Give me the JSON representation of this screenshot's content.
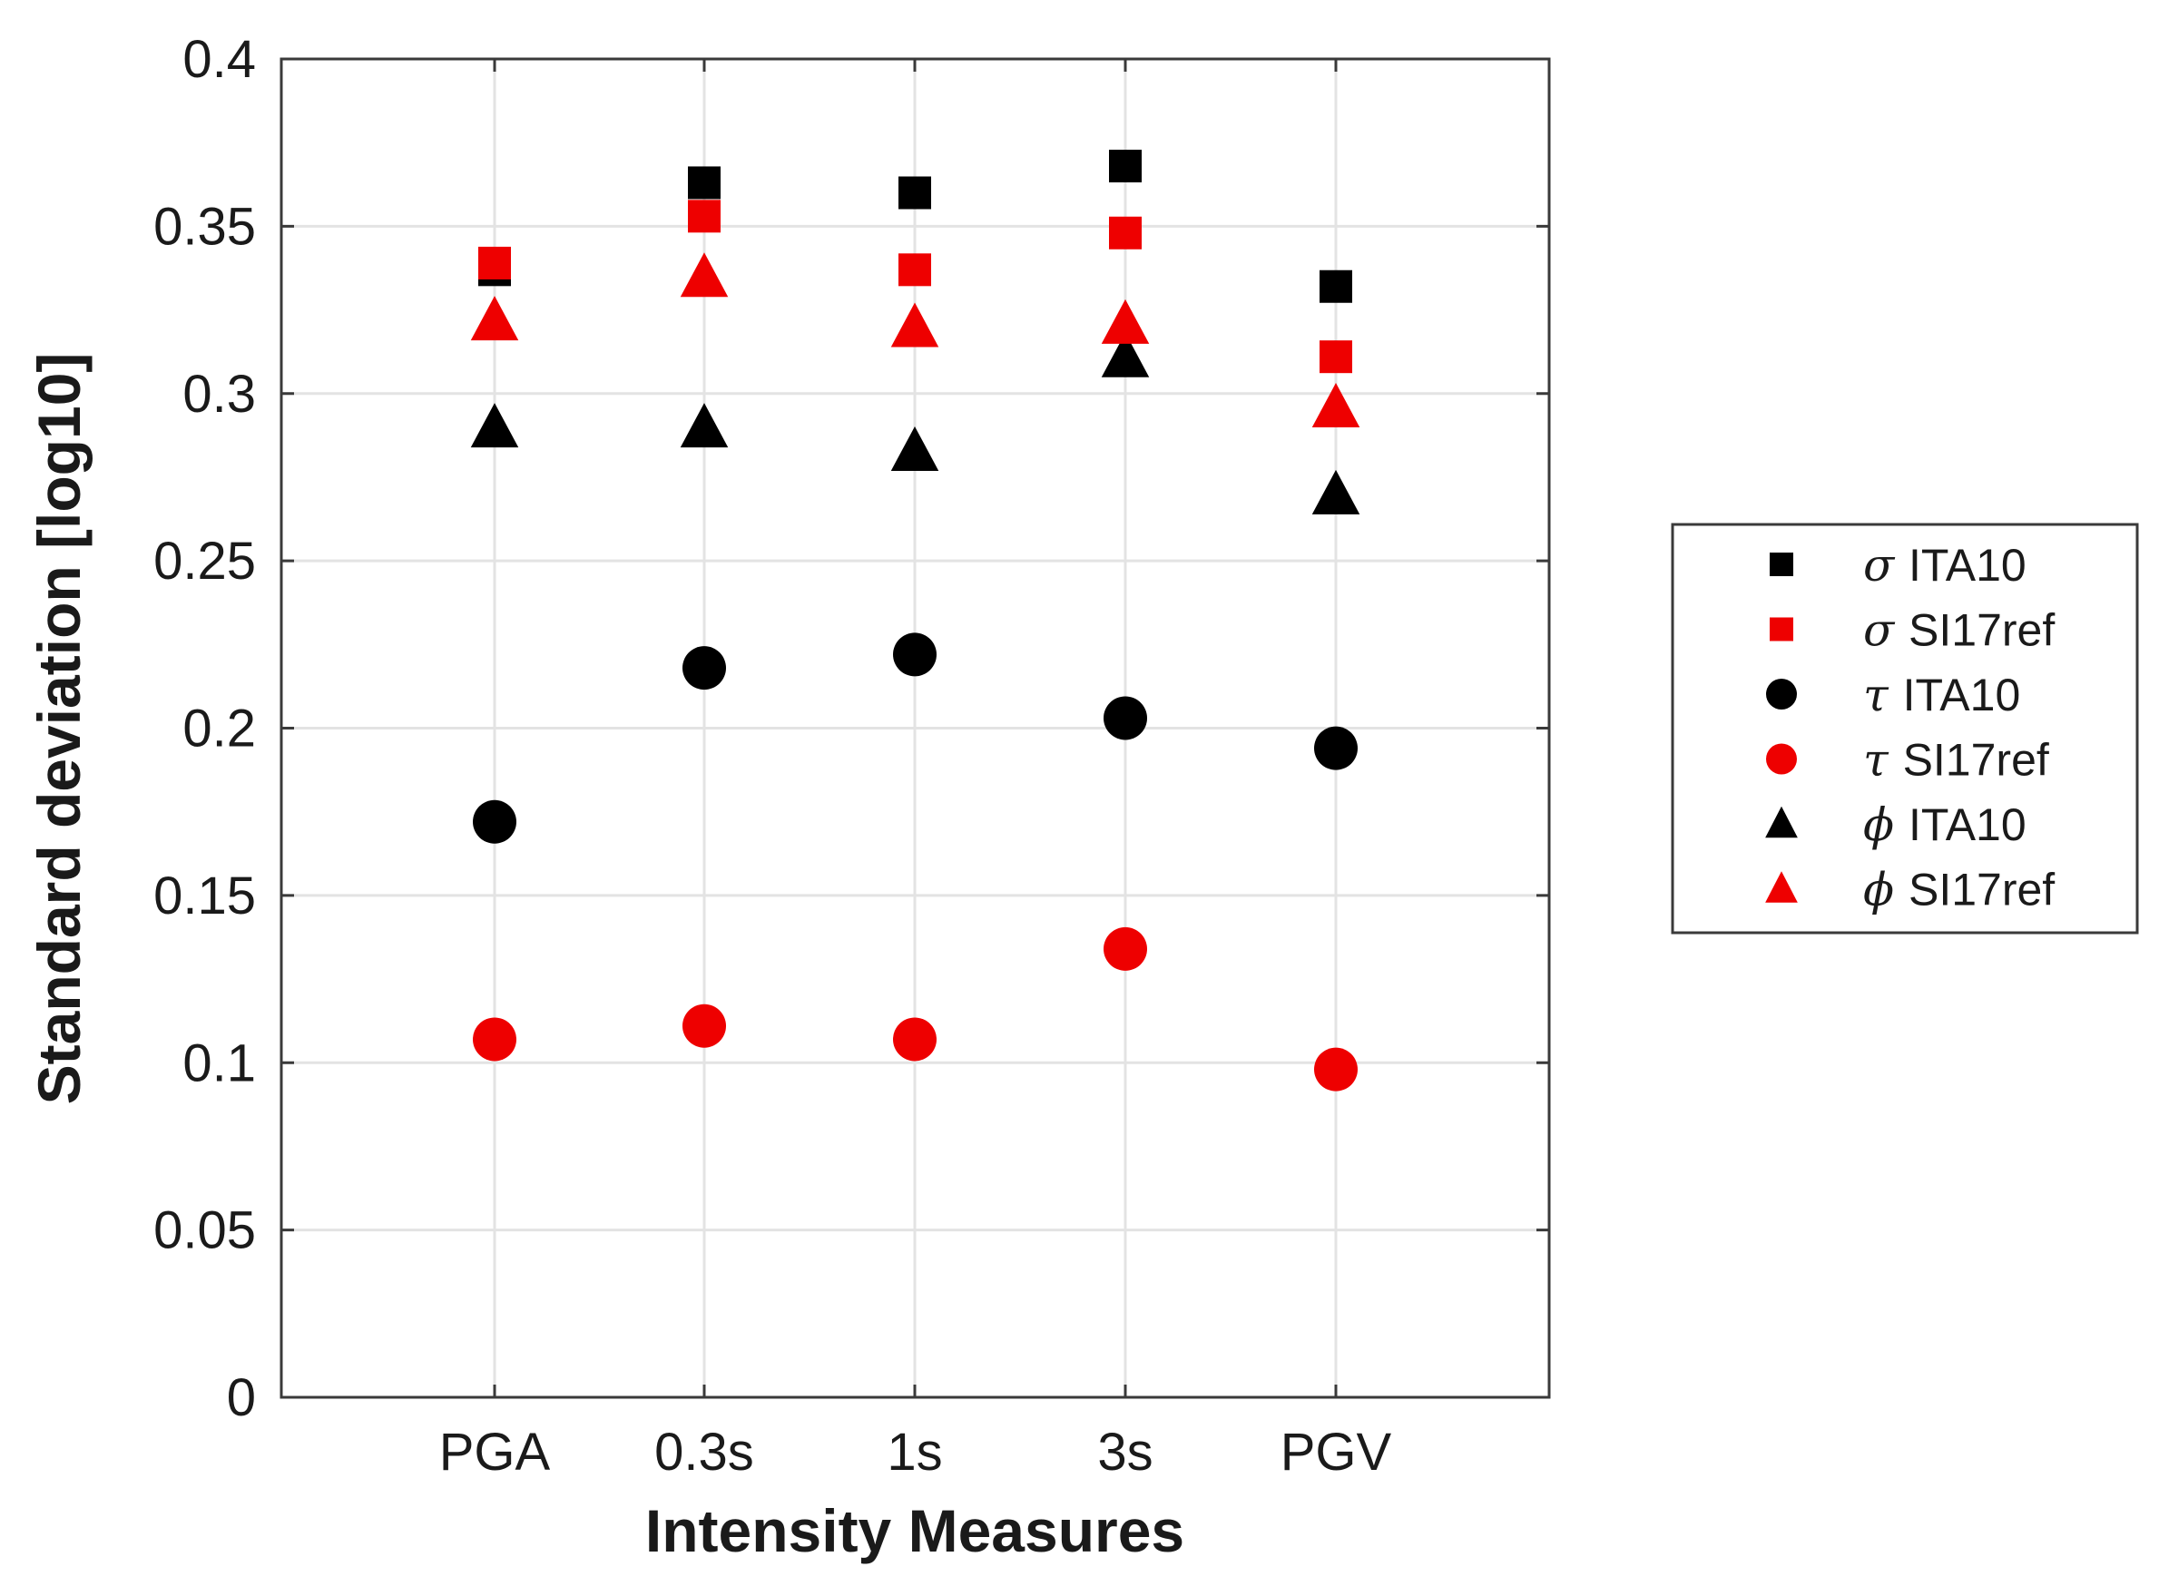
{
  "chart_data": {
    "type": "scatter",
    "title": "",
    "xlabel": "Intensity Measures",
    "ylabel": "Standard deviation [log10]",
    "categories": [
      "PGA",
      "0.3s",
      "1s",
      "3s",
      "PGV"
    ],
    "ylim": [
      0,
      0.4
    ],
    "yticks": [
      "0",
      "0.05",
      "0.1",
      "0.15",
      "0.2",
      "0.25",
      "0.3",
      "0.35",
      "0.4"
    ],
    "grid": true,
    "legend_position": "right",
    "series": [
      {
        "name": "σ ITA10",
        "symbol": "σ",
        "label": "ITA10",
        "marker": "square",
        "color": "#000000",
        "values": [
          0.337,
          0.363,
          0.36,
          0.368,
          0.332
        ]
      },
      {
        "name": "σ SI17ref",
        "symbol": "σ",
        "label": "SI17ref",
        "marker": "square",
        "color": "#ee0000",
        "values": [
          0.339,
          0.353,
          0.337,
          0.348,
          0.311
        ]
      },
      {
        "name": "τ ITA10",
        "symbol": "τ",
        "label": "ITA10",
        "marker": "circle",
        "color": "#000000",
        "values": [
          0.172,
          0.218,
          0.222,
          0.203,
          0.194
        ]
      },
      {
        "name": "τ SI17ref",
        "symbol": "τ",
        "label": "SI17ref",
        "marker": "circle",
        "color": "#ee0000",
        "values": [
          0.107,
          0.111,
          0.107,
          0.134,
          0.098
        ]
      },
      {
        "name": "ϕ ITA10",
        "symbol": "ϕ",
        "label": "ITA10",
        "marker": "triangle",
        "color": "#000000",
        "values": [
          0.29,
          0.29,
          0.283,
          0.311,
          0.27
        ]
      },
      {
        "name": "ϕ SI17ref",
        "symbol": "ϕ",
        "label": "SI17ref",
        "marker": "triangle",
        "color": "#ee0000",
        "values": [
          0.322,
          0.335,
          0.32,
          0.321,
          0.296
        ]
      }
    ]
  }
}
